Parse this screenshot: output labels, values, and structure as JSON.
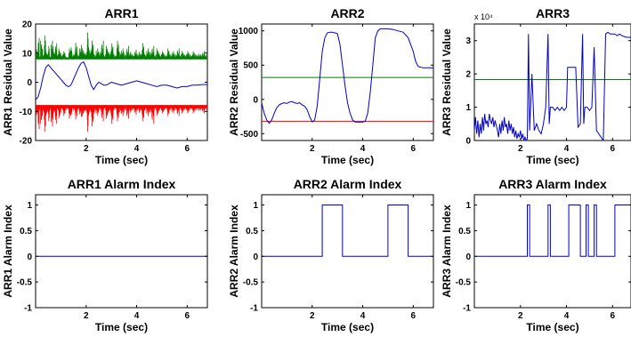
{
  "chart_data": [
    {
      "type": "line",
      "title": "ARR1",
      "xlabel": "Time (sec)",
      "ylabel": "ARR1 Residual Value",
      "xlim": [
        0,
        6.8
      ],
      "ylim": [
        -20,
        20
      ],
      "xticks": [
        2,
        4,
        6
      ],
      "yticks": [
        -20,
        -10,
        0,
        10,
        20
      ],
      "xtick_labels": [
        "2",
        "4",
        "6"
      ],
      "ytick_labels": [
        "-20",
        "-10",
        "0",
        "10",
        "20"
      ],
      "series": [
        {
          "color": "#008000",
          "style": "dense-spikes",
          "x": [
            0.0,
            0.1,
            0.15,
            0.2,
            0.28,
            0.35,
            0.42,
            0.5,
            0.55,
            0.62,
            0.7,
            0.78,
            0.85,
            0.92,
            1.0,
            1.1,
            1.2,
            1.3,
            1.4,
            1.45,
            1.55,
            1.65,
            1.75,
            1.85,
            1.95,
            2.05,
            2.1,
            2.2,
            2.3,
            2.4,
            2.5,
            2.6,
            2.7,
            2.8,
            2.9,
            3.0,
            3.1,
            3.2,
            3.3,
            3.4,
            3.5,
            3.6,
            3.7,
            3.8,
            3.9,
            4.0,
            4.1,
            4.2,
            4.3,
            4.4,
            4.5,
            4.6,
            4.7,
            4.8,
            4.9,
            5.0,
            5.1,
            5.2,
            5.3,
            5.4,
            5.5,
            5.6,
            5.7,
            5.8,
            5.9,
            6.0,
            6.1,
            6.2,
            6.3,
            6.4,
            6.5,
            6.6,
            6.7,
            6.8
          ],
          "values": [
            12,
            16,
            9,
            15,
            10,
            17,
            11,
            13,
            9,
            15,
            11,
            14,
            10,
            12,
            10,
            11,
            9,
            12,
            13,
            10,
            15,
            10,
            14,
            12,
            11,
            18,
            13,
            15,
            10,
            12,
            11,
            15,
            10,
            13,
            11,
            14,
            10,
            15,
            11,
            12,
            10,
            13,
            11,
            10,
            12,
            10,
            11,
            14,
            10,
            12,
            11,
            13,
            10,
            12,
            10,
            11,
            10,
            12,
            10,
            11,
            10,
            12,
            10,
            11,
            10,
            11,
            10,
            11,
            10,
            10,
            10,
            11,
            10,
            10
          ]
        },
        {
          "color": "#008000",
          "style": "line",
          "x": [
            0.0,
            6.8
          ],
          "values": [
            8,
            8
          ]
        },
        {
          "color": "#0000cc",
          "style": "line",
          "x": [
            0.0,
            0.1,
            0.2,
            0.3,
            0.4,
            0.5,
            0.6,
            0.7,
            0.8,
            0.9,
            1.0,
            1.1,
            1.2,
            1.3,
            1.4,
            1.5,
            1.6,
            1.7,
            1.8,
            1.9,
            2.0,
            2.1,
            2.2,
            2.3,
            2.4,
            2.5,
            2.6,
            2.7,
            2.8,
            2.9,
            3.0,
            3.2,
            3.4,
            3.6,
            3.8,
            4.0,
            4.2,
            4.4,
            4.6,
            4.8,
            5.0,
            5.2,
            5.4,
            5.6,
            5.8,
            6.0,
            6.2,
            6.4,
            6.6,
            6.8
          ],
          "values": [
            -6,
            -5,
            -2,
            2,
            5,
            6,
            5,
            4,
            3,
            2,
            1,
            0,
            -1,
            -1.5,
            -1,
            1,
            3,
            5,
            6.5,
            7,
            5,
            2,
            -1,
            -2.5,
            -1,
            0,
            -0.5,
            -1,
            -1,
            -0.5,
            0,
            -0.5,
            -1,
            -0.5,
            0,
            0.5,
            0,
            -0.5,
            -1,
            -1.5,
            -1,
            -1,
            -1.5,
            -2,
            -1.5,
            -1.5,
            -1,
            -1,
            -0.8,
            -0.8
          ]
        },
        {
          "color": "#008000",
          "style": "line",
          "x": [
            0.0,
            6.8
          ],
          "values": [
            -8,
            -8
          ]
        },
        {
          "color": "#ff0000",
          "style": "dense-spikes",
          "x": [
            0.0,
            0.1,
            0.15,
            0.2,
            0.28,
            0.35,
            0.42,
            0.5,
            0.55,
            0.62,
            0.7,
            0.78,
            0.85,
            0.92,
            1.0,
            1.1,
            1.2,
            1.3,
            1.4,
            1.45,
            1.55,
            1.65,
            1.75,
            1.85,
            1.95,
            2.05,
            2.1,
            2.2,
            2.3,
            2.4,
            2.5,
            2.6,
            2.7,
            2.8,
            2.9,
            3.0,
            3.1,
            3.2,
            3.3,
            3.4,
            3.5,
            3.6,
            3.7,
            3.8,
            3.9,
            4.0,
            4.1,
            4.2,
            4.3,
            4.4,
            4.5,
            4.6,
            4.7,
            4.8,
            4.9,
            5.0,
            5.1,
            5.2,
            5.3,
            5.4,
            5.5,
            5.6,
            5.7,
            5.8,
            5.9,
            6.0,
            6.1,
            6.2,
            6.3,
            6.4,
            6.5,
            6.6,
            6.7,
            6.8
          ],
          "values": [
            -12,
            -17,
            -10,
            -15,
            -11,
            -18,
            -12,
            -14,
            -10,
            -16,
            -11,
            -15,
            -10,
            -13,
            -10,
            -12,
            -10,
            -13,
            -12,
            -10,
            -14,
            -10,
            -13,
            -12,
            -11,
            -18,
            -12,
            -16,
            -11,
            -12,
            -10,
            -14,
            -10,
            -13,
            -11,
            -15,
            -10,
            -14,
            -11,
            -12,
            -10,
            -13,
            -11,
            -10,
            -12,
            -10,
            -11,
            -14,
            -10,
            -12,
            -11,
            -15,
            -10,
            -12,
            -10,
            -11,
            -10,
            -12,
            -10,
            -11,
            -10,
            -12,
            -10,
            -11,
            -10,
            -11,
            -10,
            -11,
            -10,
            -10,
            -10,
            -11,
            -10,
            -10
          ]
        },
        {
          "color": "#ff0000",
          "style": "line",
          "x": [
            0.0,
            6.8
          ],
          "values": [
            -8,
            -8
          ]
        }
      ]
    },
    {
      "type": "line",
      "title": "ARR2",
      "xlabel": "Time (sec)",
      "ylabel": "ARR2 Residual Value",
      "xlim": [
        0,
        6.8
      ],
      "ylim": [
        -600,
        1100
      ],
      "xticks": [
        2,
        4,
        6
      ],
      "yticks": [
        -500,
        0,
        500,
        1000
      ],
      "xtick_labels": [
        "2",
        "4",
        "6"
      ],
      "ytick_labels": [
        "-500",
        "0",
        "500",
        "1000"
      ],
      "series": [
        {
          "color": "#008000",
          "style": "line",
          "x": [
            0.0,
            6.8
          ],
          "values": [
            320,
            320
          ]
        },
        {
          "color": "#ff0000",
          "style": "line",
          "x": [
            0.0,
            6.8
          ],
          "values": [
            -320,
            -320
          ]
        },
        {
          "color": "#0000cc",
          "style": "line",
          "x": [
            0.0,
            0.1,
            0.2,
            0.3,
            0.4,
            0.5,
            0.6,
            0.7,
            0.8,
            0.9,
            1.0,
            1.1,
            1.2,
            1.3,
            1.4,
            1.5,
            1.6,
            1.7,
            1.8,
            1.9,
            2.0,
            2.1,
            2.2,
            2.3,
            2.4,
            2.5,
            2.6,
            2.7,
            2.8,
            2.9,
            3.0,
            3.1,
            3.2,
            3.3,
            3.4,
            3.5,
            3.6,
            3.7,
            3.8,
            3.9,
            4.0,
            4.1,
            4.2,
            4.3,
            4.4,
            4.5,
            4.6,
            4.7,
            4.8,
            4.9,
            5.0,
            5.2,
            5.4,
            5.6,
            5.8,
            6.0,
            6.1,
            6.2,
            6.4,
            6.6,
            6.8
          ],
          "values": [
            -50,
            -200,
            -300,
            -350,
            -300,
            -200,
            -120,
            -80,
            -60,
            -50,
            -60,
            -40,
            -30,
            -50,
            -60,
            -50,
            -80,
            -100,
            -150,
            -250,
            -330,
            -300,
            -100,
            300,
            700,
            900,
            970,
            980,
            980,
            970,
            960,
            800,
            500,
            200,
            -50,
            -200,
            -300,
            -330,
            -330,
            -330,
            -330,
            -320,
            -200,
            100,
            500,
            900,
            1000,
            1030,
            1030,
            1030,
            1030,
            1020,
            1000,
            980,
            900,
            700,
            550,
            480,
            460,
            460,
            460
          ]
        }
      ]
    },
    {
      "type": "line",
      "title": "ARR3",
      "xlabel": "Time (sec)",
      "ylabel": "ARR3 Residual Value",
      "axis_multiplier": "x 10⁴",
      "xlim": [
        0,
        6.8
      ],
      "ylim": [
        0,
        3.5
      ],
      "xticks": [
        2,
        4,
        6
      ],
      "yticks": [
        0,
        1,
        2,
        3
      ],
      "xtick_labels": [
        "2",
        "4",
        "6"
      ],
      "ytick_labels": [
        "0",
        "1",
        "2",
        "3"
      ],
      "series": [
        {
          "color": "#008000",
          "style": "line",
          "x": [
            0.0,
            6.8
          ],
          "values": [
            1.83,
            1.83
          ]
        },
        {
          "color": "#0000cc",
          "style": "line",
          "x": [
            0.0,
            0.05,
            0.1,
            0.15,
            0.2,
            0.25,
            0.3,
            0.35,
            0.4,
            0.45,
            0.5,
            0.55,
            0.6,
            0.65,
            0.7,
            0.75,
            0.8,
            0.85,
            0.9,
            1.0,
            1.05,
            1.1,
            1.15,
            1.2,
            1.25,
            1.3,
            1.35,
            1.4,
            1.45,
            1.5,
            1.55,
            1.6,
            1.65,
            1.7,
            1.75,
            1.8,
            1.85,
            1.9,
            1.95,
            2.0,
            2.05,
            2.1,
            2.15,
            2.2,
            2.25,
            2.3,
            2.35,
            2.4,
            2.5,
            2.6,
            2.7,
            2.8,
            2.9,
            3.0,
            3.1,
            3.2,
            3.25,
            3.3,
            3.4,
            3.5,
            3.6,
            3.7,
            3.8,
            3.9,
            4.0,
            4.05,
            4.1,
            4.2,
            4.3,
            4.4,
            4.5,
            4.6,
            4.7,
            4.75,
            4.8,
            4.9,
            5.0,
            5.1,
            5.2,
            5.3,
            5.4,
            5.5,
            5.6,
            5.7,
            5.8,
            5.9,
            6.0,
            6.1,
            6.2,
            6.3,
            6.4,
            6.6,
            6.8
          ],
          "values": [
            0.3,
            0.7,
            0.2,
            0.6,
            0.1,
            0.5,
            0.2,
            0.7,
            0.3,
            0.8,
            0.5,
            0.6,
            0.4,
            0.8,
            0.6,
            0.5,
            0.7,
            0.4,
            0.6,
            0.3,
            0.1,
            0.5,
            0.2,
            0.6,
            0.3,
            0.7,
            0.4,
            0.5,
            0.2,
            0.6,
            0.3,
            0.5,
            0.2,
            0.4,
            0.1,
            0.3,
            0.05,
            0.2,
            0.1,
            0.3,
            0.05,
            0.2,
            0.0,
            0.1,
            0.0,
            0.05,
            3.2,
            0.3,
            2.0,
            0.3,
            0.5,
            0.3,
            0.2,
            0.5,
            1.0,
            3.2,
            0.5,
            1.0,
            1.0,
            0.9,
            1.0,
            0.9,
            1.0,
            0.9,
            1.0,
            2.2,
            2.2,
            2.2,
            2.2,
            2.2,
            0.4,
            0.5,
            3.2,
            0.5,
            1.0,
            1.0,
            0.9,
            1.0,
            2.8,
            0.3,
            0.2,
            0.1,
            0.0,
            3.2,
            3.25,
            3.2,
            3.2,
            3.2,
            3.15,
            3.2,
            3.15,
            3.1,
            3.1
          ]
        }
      ]
    },
    {
      "type": "line",
      "title": "ARR1 Alarm Index",
      "xlabel": "Time (sec)",
      "ylabel": "ARR1 Alarm Index",
      "xlim": [
        0,
        6.8
      ],
      "ylim": [
        -1,
        1.2
      ],
      "xticks": [
        2,
        4,
        6
      ],
      "yticks": [
        -1,
        -0.5,
        0,
        0.5,
        1
      ],
      "xtick_labels": [
        "2",
        "4",
        "6"
      ],
      "ytick_labels": [
        "-1",
        "-0.5",
        "0",
        "0.5",
        "1"
      ],
      "series": [
        {
          "color": "#0000cc",
          "style": "line",
          "x": [
            0.0,
            6.8
          ],
          "values": [
            0,
            0
          ]
        }
      ]
    },
    {
      "type": "line",
      "title": "ARR2 Alarm Index",
      "xlabel": "Time (sec)",
      "ylabel": "ARR2 Alarm Index",
      "xlim": [
        0,
        6.8
      ],
      "ylim": [
        -1,
        1.2
      ],
      "xticks": [
        2,
        4,
        6
      ],
      "yticks": [
        -1,
        -0.5,
        0,
        0.5,
        1
      ],
      "xtick_labels": [
        "2",
        "4",
        "6"
      ],
      "ytick_labels": [
        "-1",
        "-0.5",
        "0",
        "0.5",
        "1"
      ],
      "series": [
        {
          "color": "#0000cc",
          "style": "step",
          "x": [
            0.0,
            2.4,
            2.4,
            3.2,
            3.2,
            5.0,
            5.0,
            5.8,
            5.8,
            6.8
          ],
          "values": [
            0,
            0,
            1,
            1,
            0,
            0,
            1,
            1,
            0,
            0
          ]
        }
      ]
    },
    {
      "type": "line",
      "title": "ARR3 Alarm Index",
      "xlabel": "Time (sec)",
      "ylabel": "ARR3 Alarm Index",
      "xlim": [
        0,
        6.8
      ],
      "ylim": [
        -1,
        1.2
      ],
      "xticks": [
        2,
        4,
        6
      ],
      "yticks": [
        -1,
        -0.5,
        0,
        0.5,
        1
      ],
      "xtick_labels": [
        "2",
        "4",
        "6"
      ],
      "ytick_labels": [
        "-1",
        "-0.5",
        "0",
        "0.5",
        "1"
      ],
      "series": [
        {
          "color": "#0000cc",
          "style": "step",
          "x": [
            0.0,
            2.3,
            2.3,
            2.4,
            2.4,
            3.2,
            3.2,
            3.3,
            3.3,
            4.1,
            4.1,
            4.6,
            4.6,
            4.85,
            4.85,
            4.95,
            4.95,
            5.2,
            5.2,
            5.3,
            5.3,
            6.1,
            6.1,
            6.8
          ],
          "values": [
            0,
            0,
            1,
            1,
            0,
            0,
            1,
            1,
            0,
            0,
            1,
            1,
            0,
            0,
            1,
            1,
            0,
            0,
            1,
            1,
            0,
            0,
            1,
            1
          ]
        }
      ]
    }
  ]
}
